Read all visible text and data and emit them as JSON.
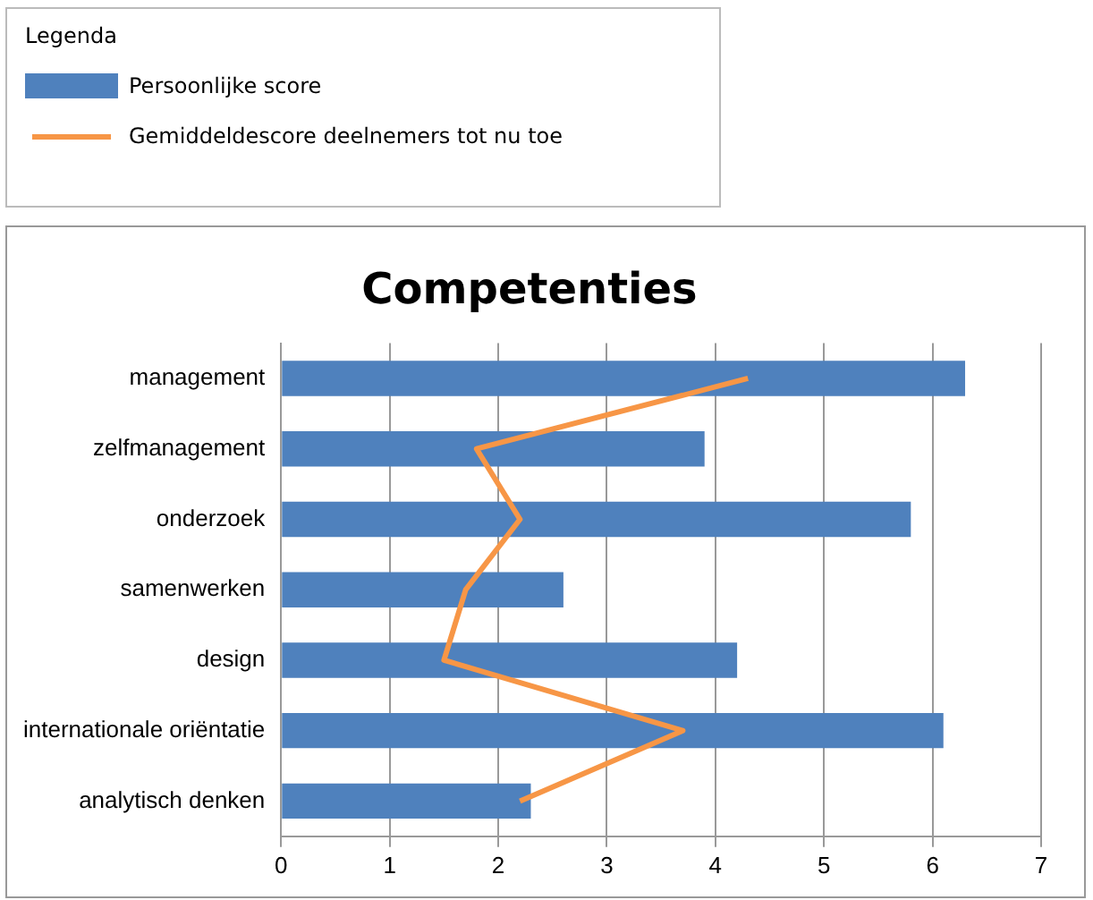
{
  "chart_data": {
    "type": "bar",
    "orientation": "horizontal",
    "title": "Competenties",
    "legend_title": "Legenda",
    "legend": "top left",
    "grid": "x",
    "categories": [
      "management",
      "zelfmanagement",
      "onderzoek",
      "samenwerken",
      "design",
      "internationale oriëntatie",
      "analytisch denken"
    ],
    "xlim": [
      0,
      7
    ],
    "xticks": [
      0,
      1,
      2,
      3,
      4,
      5,
      6,
      7
    ],
    "series": [
      {
        "name": "Persoonlijke score",
        "color": "#4f81bd",
        "values": [
          6.3,
          3.9,
          5.8,
          2.6,
          4.2,
          6.1,
          2.3
        ]
      },
      {
        "name": "Gemiddeldescore deelnemers tot nu toe",
        "type": "line",
        "color": "#f79646",
        "values": [
          4.3,
          1.8,
          2.2,
          1.7,
          1.5,
          3.7,
          2.2
        ]
      }
    ]
  }
}
